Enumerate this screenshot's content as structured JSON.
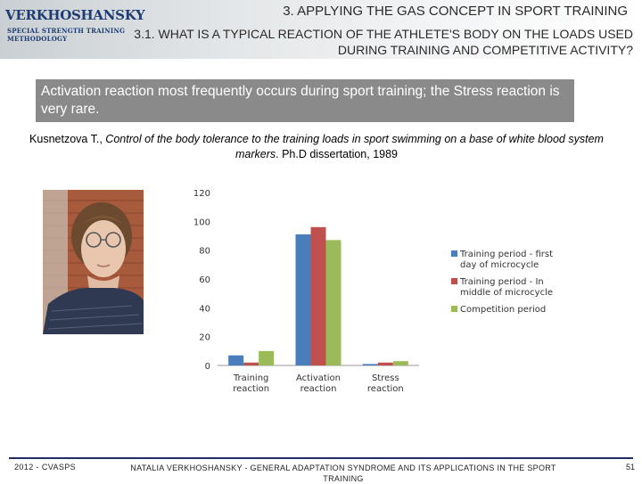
{
  "header": {
    "logo_lines": [
      "VERKHOSHANSKY",
      "SPECIAL STRENGTH TRAINING",
      "METHODOLOGY"
    ],
    "title": "3. APPLYING THE GAS CONCEPT IN SPORT TRAINING",
    "subtitle": "3.1. WHAT IS A TYPICAL REACTION OF THE ATHLETE'S BODY ON THE LOADS USED DURING TRAINING AND COMPETITIVE ACTIVITY?"
  },
  "callout": "Activation reaction most frequently occurs during sport training; the Stress reaction is very rare.",
  "citation": {
    "author": "Kusnetzova T., ",
    "title": "Control of the body tolerance to the training loads in sport swimming on a base of white blood system markers",
    "rest": ". Ph.D dissertation, 1989"
  },
  "chart_data": {
    "type": "bar",
    "categories": [
      [
        "Training",
        "reaction"
      ],
      [
        "Activation",
        "reaction"
      ],
      [
        "Stress",
        "reaction"
      ]
    ],
    "series": [
      {
        "name": [
          "Training period - first",
          "day of microcycle"
        ],
        "color": "#4a7ebb",
        "values": [
          7,
          91,
          1
        ]
      },
      {
        "name": [
          "Training period - In",
          "middle of microcycle"
        ],
        "color": "#c0504d",
        "values": [
          2,
          96,
          2
        ]
      },
      {
        "name": [
          "Competition period"
        ],
        "color": "#9bbb59",
        "values": [
          10,
          87,
          3
        ]
      }
    ],
    "ylim": [
      0,
      120
    ],
    "yticks": [
      0,
      20,
      40,
      60,
      80,
      100,
      120
    ],
    "legend": "right",
    "grid": false
  },
  "footer": {
    "left": "2012 - CVASPS",
    "center": "NATALIA VERKHOSHANSKY - GENERAL ADAPTATION SYNDROME AND ITS APPLICATIONS IN THE SPORT TRAINING",
    "right": "51"
  }
}
